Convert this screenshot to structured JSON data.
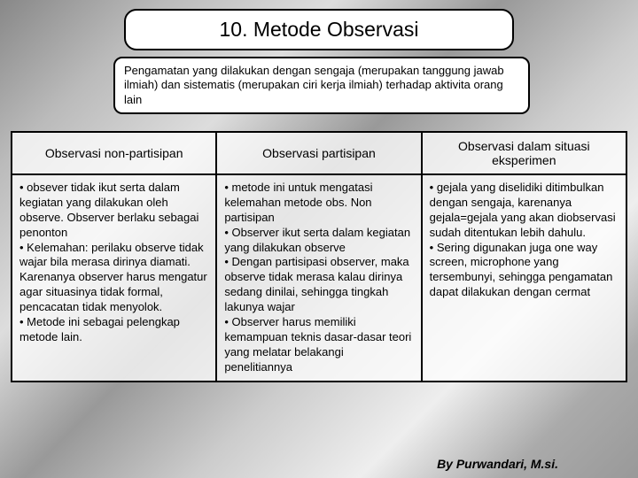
{
  "title": "10. Metode Observasi",
  "description": "Pengamatan yang dilakukan dengan sengaja (merupakan tanggung jawab ilmiah) dan sistematis (merupakan ciri kerja ilmiah) terhadap aktivita orang lain",
  "table": {
    "headers": [
      "Observasi non-partisipan",
      "Observasi partisipan",
      "Observasi dalam situasi eksperimen"
    ],
    "cells": [
      "• obsever tidak ikut serta dalam kegiatan yang dilakukan oleh observe. Observer berlaku sebagai penonton\n• Kelemahan: perilaku observe tidak wajar bila merasa dirinya diamati. Karenanya observer harus mengatur agar situasinya tidak formal, pencacatan tidak menyolok.\n• Metode ini sebagai pelengkap metode lain.",
      "• metode ini untuk mengatasi kelemahan metode obs. Non partisipan\n• Observer ikut serta dalam kegiatan yang dilakukan observe\n• Dengan partisipasi observer, maka observe tidak merasa kalau dirinya sedang dinilai, sehingga tingkah lakunya wajar\n• Observer harus memiliki kemampuan teknis dasar-dasar teori yang melatar belakangi penelitiannya",
      "• gejala yang diselidiki ditimbulkan dengan sengaja, karenanya gejala=gejala yang akan diobservasi sudah ditentukan lebih dahulu.\n• Sering digunakan juga one way screen, microphone yang tersembunyi, sehingga pengamatan dapat dilakukan dengan cermat"
    ]
  },
  "footer": "By Purwandari, M.si.",
  "colors": {
    "border": "#000000",
    "box_bg": "#ffffff",
    "text": "#000000"
  }
}
